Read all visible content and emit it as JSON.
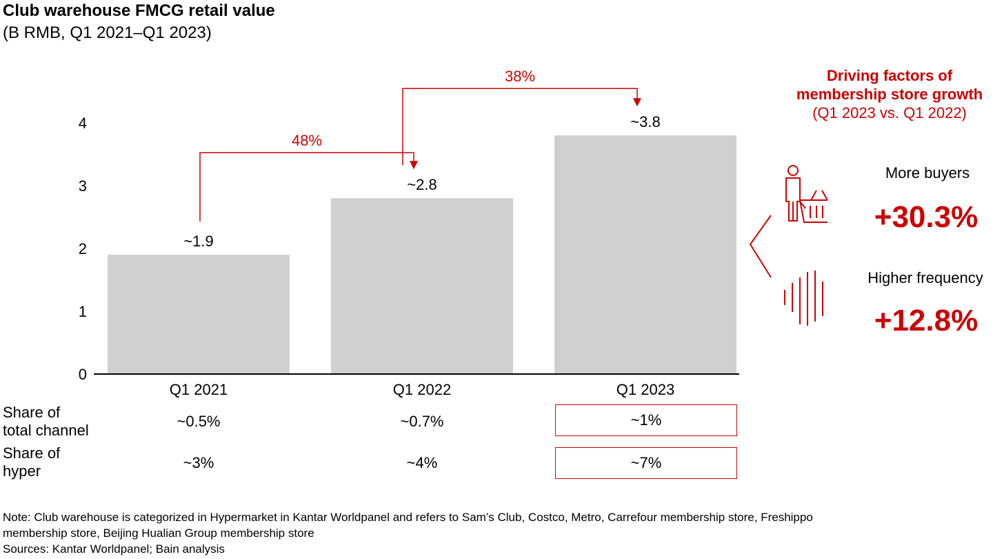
{
  "title": "Club warehouse FMCG retail value",
  "subtitle": "(B RMB, Q1 2021–Q1 2023)",
  "colors": {
    "bar": "#d0d0d0",
    "accent": "#cc0000",
    "axis": "#000000"
  },
  "chart_data": {
    "type": "bar",
    "categories": [
      "Q1 2021",
      "Q1 2022",
      "Q1 2023"
    ],
    "values": [
      1.9,
      2.8,
      3.8
    ],
    "value_labels": [
      "~1.9",
      "~2.8",
      "~3.8"
    ],
    "yticks": [
      "0",
      "1",
      "2",
      "3",
      "4"
    ],
    "ylim": [
      0,
      4.5
    ],
    "grid": false,
    "growth_annotations": [
      {
        "from": "Q1 2021",
        "to": "Q1 2022",
        "label": "48%"
      },
      {
        "from": "Q1 2022",
        "to": "Q1 2023",
        "label": "38%"
      }
    ]
  },
  "rows": [
    {
      "label_line1": "Share of",
      "label_line2": "total channel",
      "values": [
        "~0.5%",
        "~0.7%",
        "~1%"
      ],
      "highlight_index": 2
    },
    {
      "label_line1": "Share of",
      "label_line2": "hyper",
      "values": [
        "~3%",
        "~4%",
        "~7%"
      ],
      "highlight_index": 2
    }
  ],
  "drivers": {
    "title_line1": "Driving factors of",
    "title_line2": "membership store growth",
    "title_line3": "(Q1 2023 vs. Q1 2022)",
    "factors": [
      {
        "label": "More buyers",
        "value": "+30.3%",
        "icon": "shopper-basket-icon"
      },
      {
        "label": "Higher frequency",
        "value": "+12.8%",
        "icon": "frequency-bars-icon"
      }
    ]
  },
  "note": {
    "line1": "Note: Club warehouse is categorized in Hypermarket in Kantar Worldpanel and refers to Sam’s Club, Costco, Metro, Carrefour membership store, Freshippo",
    "line2": "membership store, Beijing Hualian Group membership store",
    "sources": "Sources: Kantar Worldpanel; Bain analysis"
  }
}
